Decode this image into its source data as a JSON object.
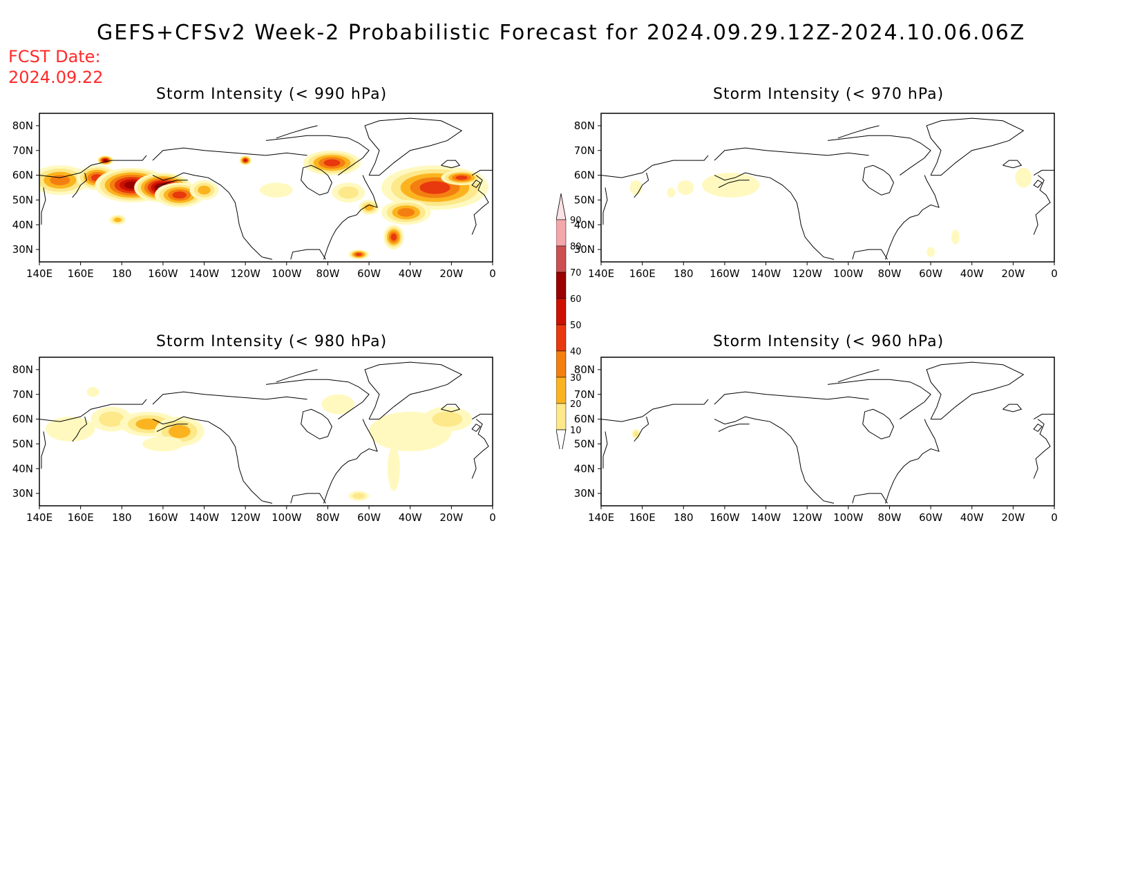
{
  "header": {
    "title": "GEFS+CFSv2 Week-2 Probabilistic Forecast for 2024.09.29.12Z-2024.10.06.06Z",
    "fcst_label": "FCST Date:",
    "fcst_value": "2024.09.22"
  },
  "map": {
    "lat_ticks": [
      "80N",
      "70N",
      "60N",
      "50N",
      "40N",
      "30N"
    ],
    "lat_values": [
      80,
      70,
      60,
      50,
      40,
      30
    ],
    "lon_ticks": [
      "140E",
      "160E",
      "180",
      "160W",
      "140W",
      "120W",
      "100W",
      "80W",
      "60W",
      "40W",
      "20W",
      "0"
    ],
    "lon_range": [
      140,
      360
    ],
    "lat_range": [
      25,
      85
    ]
  },
  "panels": [
    {
      "title": "Storm Intensity (< 990 hPa)",
      "blobs": [
        {
          "lon": 150,
          "lat": 58,
          "rl": 14,
          "rt": 6,
          "p": 45
        },
        {
          "lon": 168,
          "lat": 59,
          "rl": 10,
          "rt": 5,
          "p": 60
        },
        {
          "lon": 185,
          "lat": 56,
          "rl": 18,
          "rt": 7,
          "p": 82
        },
        {
          "lon": 200,
          "lat": 55,
          "rl": 14,
          "rt": 6,
          "p": 85
        },
        {
          "lon": 208,
          "lat": 52,
          "rl": 12,
          "rt": 5,
          "p": 55
        },
        {
          "lon": 220,
          "lat": 54,
          "rl": 7,
          "rt": 4,
          "p": 40
        },
        {
          "lon": 178,
          "lat": 42,
          "rl": 4,
          "rt": 2,
          "p": 35
        },
        {
          "lon": 172,
          "lat": 66,
          "rl": 4,
          "rt": 2,
          "p": 80
        },
        {
          "lon": 240,
          "lat": 66,
          "rl": 3,
          "rt": 2,
          "p": 65
        },
        {
          "lon": 255,
          "lat": 54,
          "rl": 8,
          "rt": 3,
          "p": 18
        },
        {
          "lon": 282,
          "lat": 65,
          "rl": 14,
          "rt": 5,
          "p": 60
        },
        {
          "lon": 290,
          "lat": 53,
          "rl": 8,
          "rt": 4,
          "p": 25
        },
        {
          "lon": 300,
          "lat": 47,
          "rl": 5,
          "rt": 3,
          "p": 35
        },
        {
          "lon": 332,
          "lat": 55,
          "rl": 26,
          "rt": 9,
          "p": 62
        },
        {
          "lon": 318,
          "lat": 45,
          "rl": 12,
          "rt": 5,
          "p": 52
        },
        {
          "lon": 312,
          "lat": 35,
          "rl": 5,
          "rt": 5,
          "p": 55
        },
        {
          "lon": 295,
          "lat": 28,
          "rl": 5,
          "rt": 2,
          "p": 60
        },
        {
          "lon": 345,
          "lat": 59,
          "rl": 10,
          "rt": 3,
          "p": 55
        }
      ]
    },
    {
      "title": "Storm Intensity (< 970 hPa)",
      "blobs": [
        {
          "lon": 203,
          "lat": 56,
          "rl": 14,
          "rt": 5,
          "p": 15
        },
        {
          "lon": 181,
          "lat": 55,
          "rl": 4,
          "rt": 3,
          "p": 12
        },
        {
          "lon": 157,
          "lat": 55,
          "rl": 3,
          "rt": 3,
          "p": 18
        },
        {
          "lon": 174,
          "lat": 53,
          "rl": 2,
          "rt": 2,
          "p": 12
        },
        {
          "lon": 345,
          "lat": 59,
          "rl": 4,
          "rt": 4,
          "p": 12
        },
        {
          "lon": 312,
          "lat": 35,
          "rl": 2,
          "rt": 3,
          "p": 12
        },
        {
          "lon": 300,
          "lat": 29,
          "rl": 2,
          "rt": 2,
          "p": 15
        }
      ]
    },
    {
      "title": "Storm Intensity (< 980 hPa)",
      "blobs": [
        {
          "lon": 155,
          "lat": 56,
          "rl": 12,
          "rt": 5,
          "p": 15
        },
        {
          "lon": 175,
          "lat": 60,
          "rl": 10,
          "rt": 5,
          "p": 25
        },
        {
          "lon": 193,
          "lat": 58,
          "rl": 14,
          "rt": 5,
          "p": 38
        },
        {
          "lon": 208,
          "lat": 55,
          "rl": 12,
          "rt": 6,
          "p": 42
        },
        {
          "lon": 200,
          "lat": 50,
          "rl": 10,
          "rt": 3,
          "p": 22
        },
        {
          "lon": 166,
          "lat": 71,
          "rl": 3,
          "rt": 2,
          "p": 15
        },
        {
          "lon": 285,
          "lat": 66,
          "rl": 8,
          "rt": 4,
          "p": 15
        },
        {
          "lon": 320,
          "lat": 55,
          "rl": 20,
          "rt": 8,
          "p": 18
        },
        {
          "lon": 338,
          "lat": 60,
          "rl": 12,
          "rt": 5,
          "p": 25
        },
        {
          "lon": 312,
          "lat": 40,
          "rl": 3,
          "rt": 9,
          "p": 15
        },
        {
          "lon": 295,
          "lat": 29,
          "rl": 5,
          "rt": 2,
          "p": 25
        }
      ]
    },
    {
      "title": "Storm Intensity (< 960 hPa)",
      "blobs": [
        {
          "lon": 157,
          "lat": 54,
          "rl": 2,
          "rt": 2,
          "p": 25
        }
      ]
    }
  ],
  "colorbar": {
    "levels": [
      "10",
      "20",
      "30",
      "40",
      "50",
      "60",
      "70",
      "80",
      "90"
    ],
    "colors": [
      "#fff9c0",
      "#fde88a",
      "#fbb41f",
      "#f47f11",
      "#e8380d",
      "#cc1100",
      "#9a0000",
      "#cc4f52",
      "#f3a7aa",
      "#fde2e5"
    ]
  }
}
